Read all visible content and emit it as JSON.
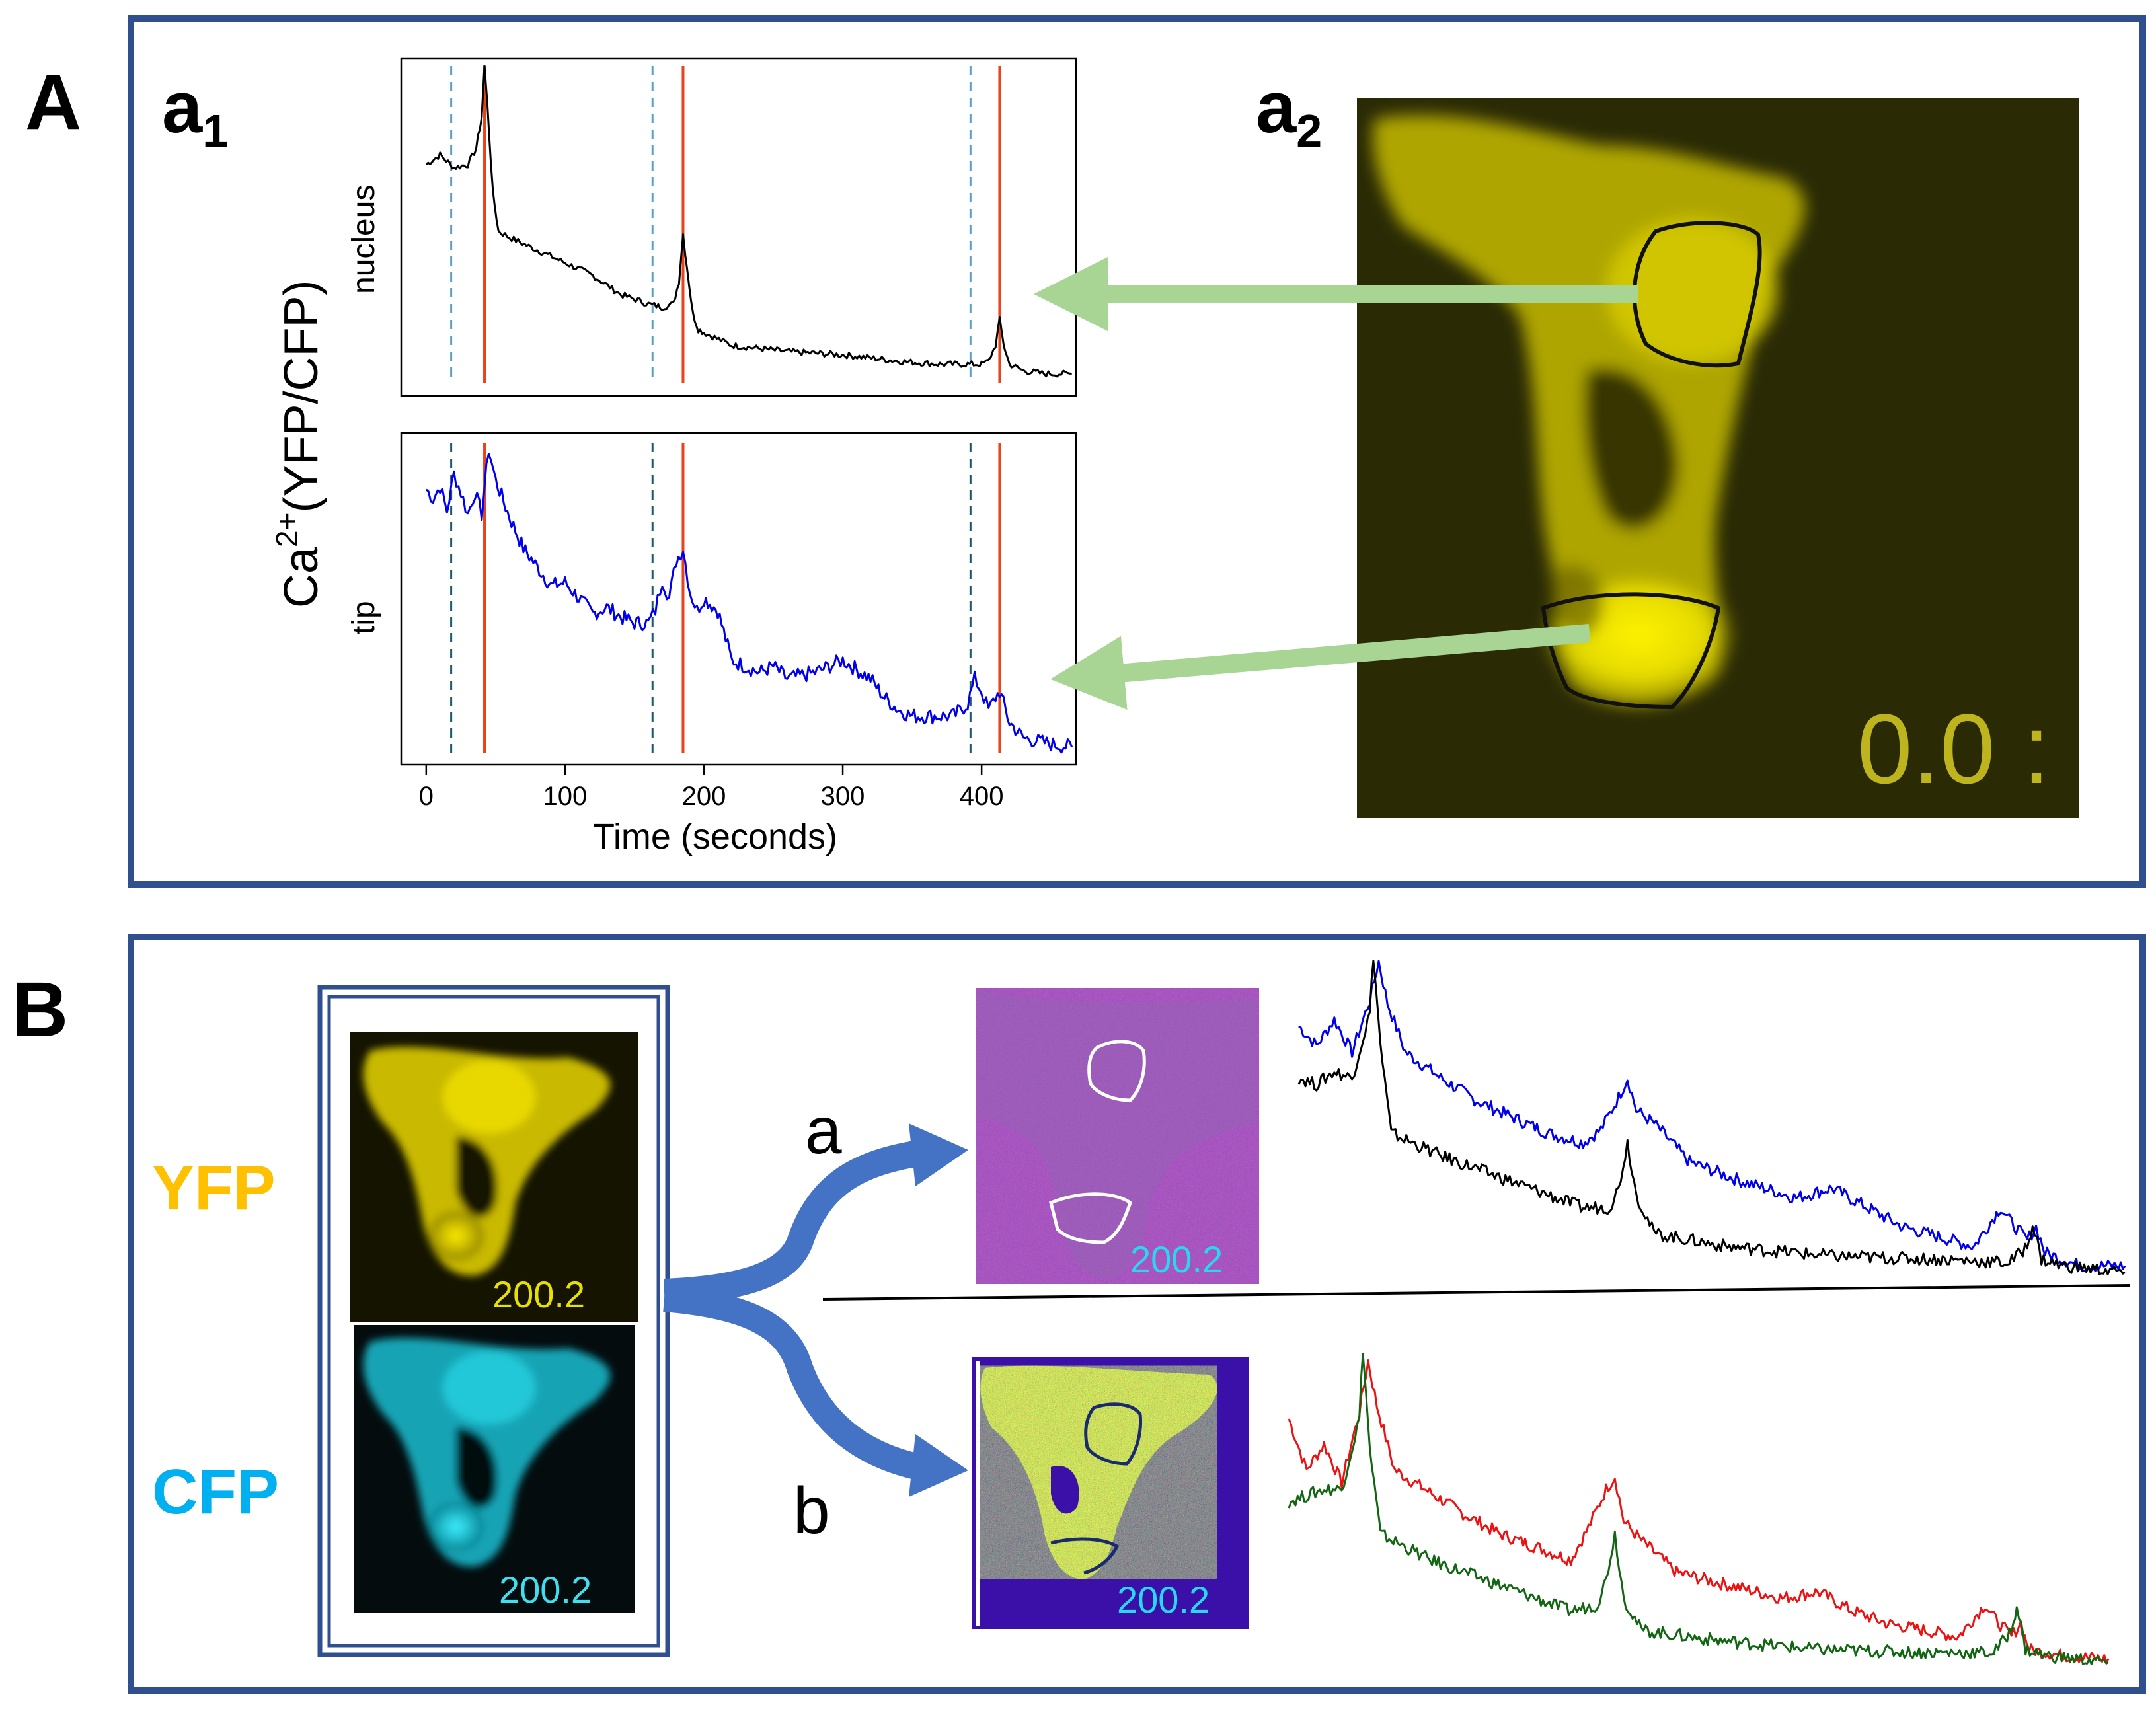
{
  "panelA": {
    "letter": "A",
    "a1_main": "a",
    "a1_sub": "1",
    "a2_main": "a",
    "a2_sub": "2",
    "ylabel_main": "Ca",
    "ylabel_sup": "2+",
    "ylabel_rest": "(YFP/CFP)",
    "label_nucleus": "nucleus",
    "label_tip": "tip",
    "xlabel": "Time (seconds)",
    "xticks": [
      "0",
      "100",
      "200",
      "300",
      "400"
    ],
    "timestamp": "0.0 :"
  },
  "panelB": {
    "letter": "B",
    "label_yfp": "YFP",
    "label_cfp": "CFP",
    "branch_a": "a",
    "branch_b": "b",
    "timestamps": {
      "yfp": "200.2",
      "cfp": "200.2",
      "ratio_a": "200.2",
      "ratio_b": "200.2"
    }
  },
  "colors": {
    "frame": "#2f4f8f",
    "red_line": "#e8431a",
    "dashed_light": "#5aa0c8",
    "dashed_dark": "#1a5a6a",
    "trace_black": "#000000",
    "trace_blue": "#0000ee",
    "trace_red": "#ee1111",
    "trace_green": "#116611",
    "arrow_green": "#a8d494",
    "arrow_blue": "#4472c4",
    "yfp_text": "#ffc000",
    "cfp_text": "#00b0f0"
  },
  "chart_data": [
    {
      "type": "line",
      "title": "nucleus",
      "xlabel": "Time (seconds)",
      "ylabel": "Ca2+(YFP/CFP)",
      "xlim": [
        -18,
        468
      ],
      "ylim": [
        0,
        1
      ],
      "xticks": [
        0,
        100,
        200,
        300,
        400
      ],
      "stimulus_times": [
        42,
        185,
        413
      ],
      "prestimulus_times": [
        18,
        163,
        392
      ],
      "series": [
        {
          "name": "nucleus",
          "color": "#000000",
          "x": [
            0,
            10,
            20,
            30,
            36,
            40,
            42,
            44,
            48,
            52,
            60,
            80,
            100,
            120,
            140,
            160,
            170,
            178,
            182,
            185,
            188,
            192,
            196,
            200,
            220,
            260,
            300,
            340,
            370,
            390,
            400,
            405,
            410,
            413,
            416,
            420,
            430,
            445,
            465
          ],
          "y": [
            0.69,
            0.72,
            0.68,
            0.69,
            0.74,
            0.84,
            1.0,
            0.88,
            0.6,
            0.48,
            0.46,
            0.42,
            0.38,
            0.34,
            0.28,
            0.25,
            0.24,
            0.25,
            0.32,
            0.47,
            0.36,
            0.22,
            0.17,
            0.16,
            0.12,
            0.1,
            0.09,
            0.07,
            0.06,
            0.06,
            0.06,
            0.07,
            0.12,
            0.2,
            0.12,
            0.06,
            0.04,
            0.03,
            0.03
          ]
        }
      ]
    },
    {
      "type": "line",
      "title": "tip",
      "xlabel": "Time (seconds)",
      "ylabel": "Ca2+(YFP/CFP)",
      "xlim": [
        -18,
        468
      ],
      "ylim": [
        0,
        1
      ],
      "xticks": [
        0,
        100,
        200,
        300,
        400
      ],
      "stimulus_times": [
        42,
        185,
        413
      ],
      "prestimulus_times": [
        18,
        163,
        392
      ],
      "series": [
        {
          "name": "tip",
          "color": "#0000ee",
          "x": [
            0,
            5,
            10,
            15,
            20,
            25,
            30,
            35,
            40,
            45,
            50,
            60,
            70,
            80,
            90,
            100,
            110,
            120,
            130,
            140,
            150,
            160,
            165,
            170,
            175,
            180,
            185,
            190,
            195,
            200,
            210,
            220,
            240,
            250,
            260,
            280,
            300,
            310,
            320,
            330,
            340,
            350,
            360,
            380,
            390,
            395,
            400,
            405,
            410,
            413,
            420,
            430,
            450,
            465
          ],
          "y": [
            0.85,
            0.82,
            0.86,
            0.78,
            0.9,
            0.84,
            0.77,
            0.84,
            0.77,
            0.98,
            0.88,
            0.76,
            0.66,
            0.6,
            0.54,
            0.55,
            0.5,
            0.45,
            0.47,
            0.44,
            0.42,
            0.42,
            0.46,
            0.56,
            0.5,
            0.62,
            0.66,
            0.52,
            0.46,
            0.5,
            0.46,
            0.3,
            0.26,
            0.28,
            0.24,
            0.26,
            0.3,
            0.27,
            0.24,
            0.18,
            0.14,
            0.12,
            0.12,
            0.12,
            0.16,
            0.24,
            0.2,
            0.14,
            0.18,
            0.2,
            0.1,
            0.05,
            0.03,
            0.02
          ]
        }
      ]
    },
    {
      "type": "line",
      "title": "",
      "xlim": [
        0,
        465
      ],
      "ylim": [
        0,
        1
      ],
      "series": [
        {
          "name": "tip",
          "color": "#0000ee",
          "x": [
            0,
            10,
            20,
            30,
            40,
            45,
            50,
            60,
            80,
            100,
            120,
            140,
            160,
            170,
            180,
            185,
            190,
            200,
            220,
            250,
            280,
            300,
            320,
            340,
            360,
            380,
            395,
            400,
            410,
            415,
            420,
            440,
            465
          ],
          "y": [
            0.78,
            0.72,
            0.8,
            0.7,
            0.86,
            0.98,
            0.85,
            0.7,
            0.62,
            0.55,
            0.5,
            0.45,
            0.42,
            0.46,
            0.56,
            0.62,
            0.52,
            0.48,
            0.36,
            0.3,
            0.25,
            0.28,
            0.22,
            0.16,
            0.13,
            0.1,
            0.22,
            0.18,
            0.12,
            0.16,
            0.08,
            0.04,
            0.04
          ]
        },
        {
          "name": "nucleus",
          "color": "#000000",
          "x": [
            0,
            10,
            20,
            30,
            40,
            42,
            46,
            52,
            80,
            120,
            160,
            175,
            180,
            185,
            190,
            200,
            240,
            300,
            360,
            400,
            410,
            413,
            418,
            430,
            465
          ],
          "y": [
            0.62,
            0.6,
            0.64,
            0.62,
            0.82,
            1.0,
            0.72,
            0.45,
            0.38,
            0.3,
            0.22,
            0.22,
            0.28,
            0.42,
            0.26,
            0.14,
            0.1,
            0.07,
            0.06,
            0.05,
            0.1,
            0.17,
            0.06,
            0.04,
            0.02
          ]
        }
      ]
    },
    {
      "type": "line",
      "title": "",
      "xlim": [
        0,
        465
      ],
      "ylim": [
        0,
        1
      ],
      "series": [
        {
          "name": "red",
          "color": "#ee1111",
          "x": [
            0,
            10,
            20,
            30,
            40,
            45,
            50,
            60,
            80,
            100,
            120,
            140,
            160,
            170,
            180,
            185,
            190,
            200,
            220,
            250,
            280,
            300,
            320,
            340,
            360,
            380,
            395,
            400,
            410,
            415,
            420,
            440,
            465
          ],
          "y": [
            0.78,
            0.62,
            0.7,
            0.58,
            0.8,
            0.96,
            0.82,
            0.62,
            0.55,
            0.48,
            0.42,
            0.38,
            0.34,
            0.44,
            0.56,
            0.6,
            0.46,
            0.4,
            0.3,
            0.26,
            0.22,
            0.24,
            0.18,
            0.14,
            0.12,
            0.1,
            0.2,
            0.16,
            0.1,
            0.14,
            0.06,
            0.04,
            0.03
          ]
        },
        {
          "name": "green",
          "color": "#116611",
          "x": [
            0,
            10,
            20,
            30,
            40,
            42,
            46,
            52,
            80,
            120,
            160,
            175,
            180,
            185,
            190,
            200,
            240,
            300,
            360,
            400,
            410,
            413,
            418,
            430,
            465
          ],
          "y": [
            0.52,
            0.54,
            0.56,
            0.56,
            0.78,
            1.0,
            0.68,
            0.42,
            0.34,
            0.26,
            0.18,
            0.2,
            0.28,
            0.42,
            0.22,
            0.12,
            0.09,
            0.06,
            0.05,
            0.05,
            0.12,
            0.2,
            0.06,
            0.04,
            0.02
          ]
        }
      ]
    }
  ]
}
